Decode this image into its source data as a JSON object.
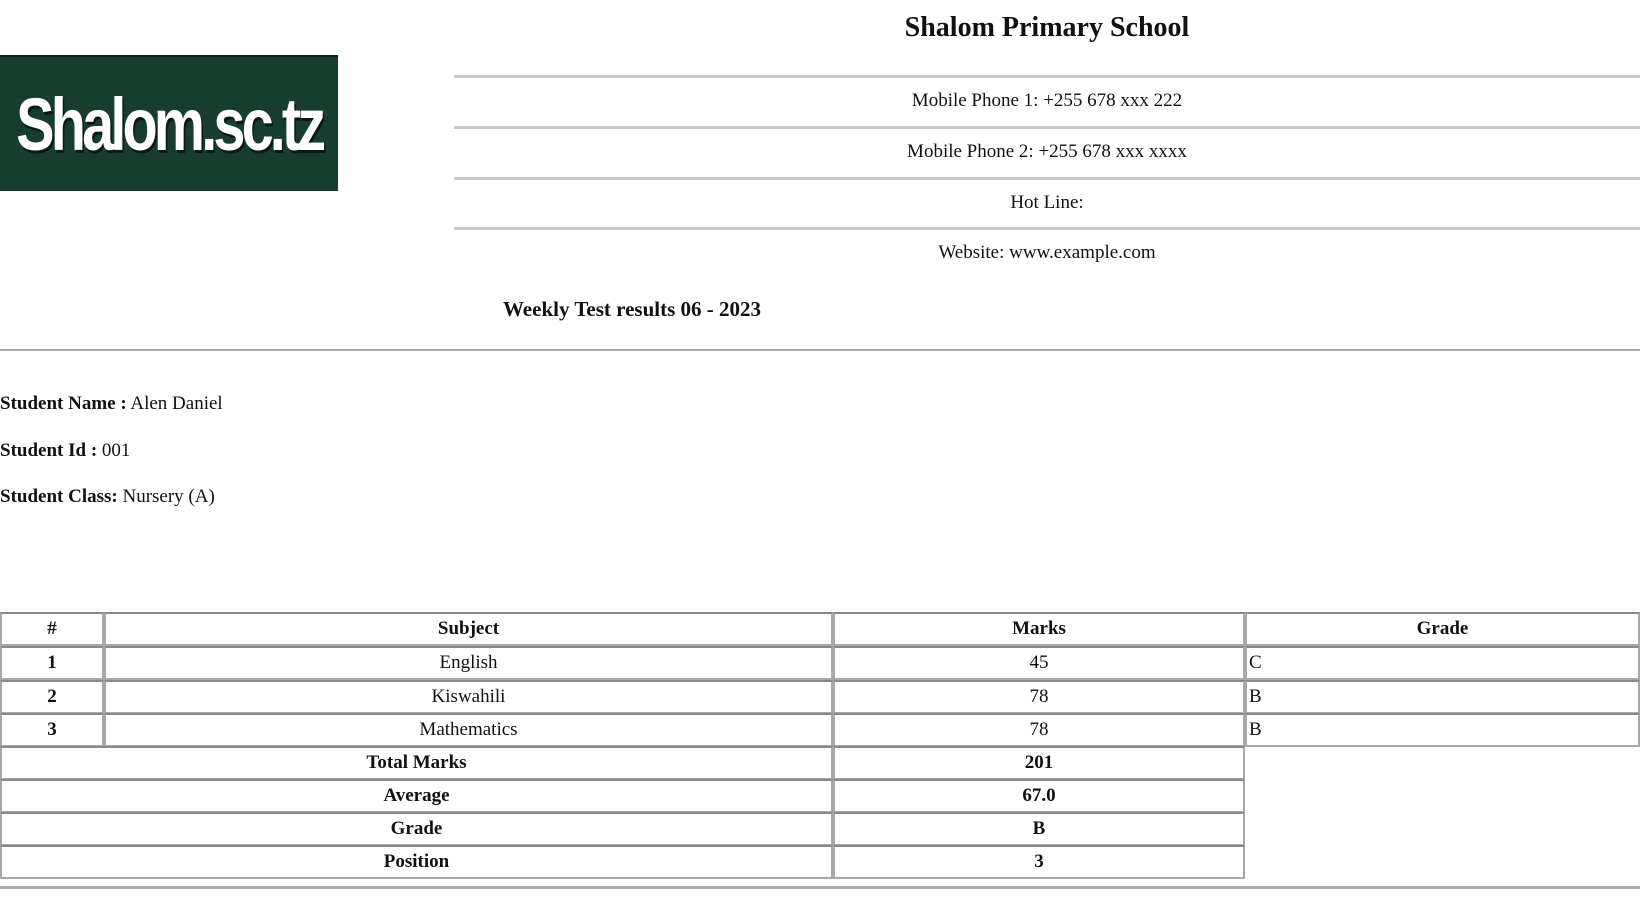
{
  "logo": {
    "text": "Shalom.sc.tz",
    "background": "#173d2f"
  },
  "school": {
    "name": "Shalom Primary School",
    "contacts": [
      "Mobile Phone 1: +255 678 xxx 222",
      "Mobile Phone 2: +255 678 xxx xxxx",
      "Hot Line:",
      "Website: www.example.com"
    ]
  },
  "report_title": "Weekly Test results 06 - 2023",
  "student": {
    "name_label": "Student Name :",
    "name": "Alen Daniel",
    "id_label": "Student Id :",
    "id": "001",
    "class_label": "Student Class:",
    "class": "Nursery (A)"
  },
  "results": {
    "headers": [
      "#",
      "Subject",
      "Marks",
      "Grade"
    ],
    "rows": [
      {
        "no": "1",
        "subject": "English",
        "marks": "45",
        "grade": "C"
      },
      {
        "no": "2",
        "subject": "Kiswahili",
        "marks": "78",
        "grade": "B"
      },
      {
        "no": "3",
        "subject": "Mathematics",
        "marks": "78",
        "grade": "B"
      }
    ],
    "summary": [
      {
        "label": "Total Marks",
        "value": "201"
      },
      {
        "label": "Average",
        "value": "67.0"
      },
      {
        "label": "Grade",
        "value": "B"
      },
      {
        "label": "Position",
        "value": "3"
      }
    ]
  }
}
